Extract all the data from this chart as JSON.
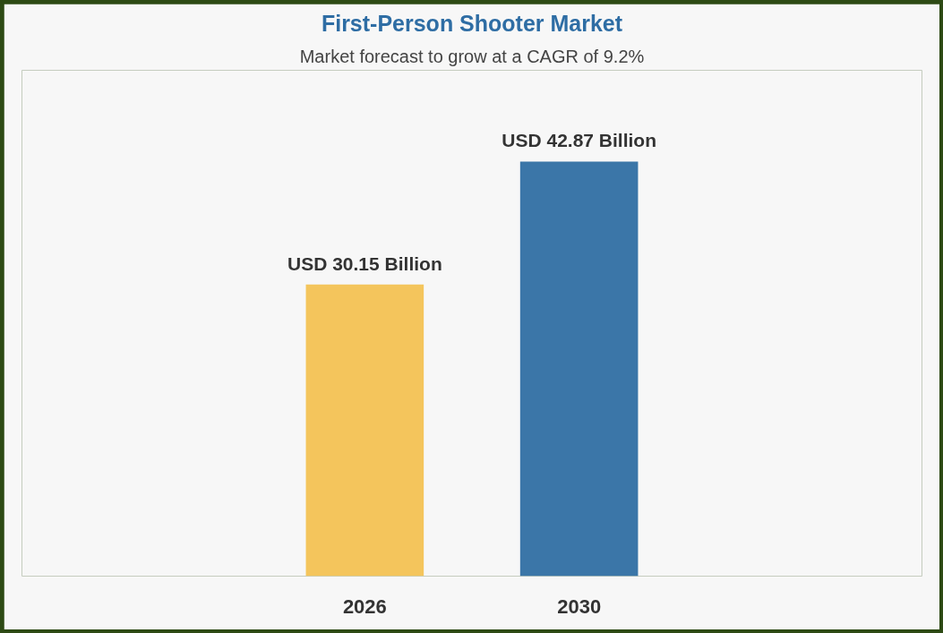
{
  "chart_data": {
    "type": "bar",
    "title": "First-Person Shooter Market",
    "subtitle": "Market forecast to grow at a CAGR of 9.2%",
    "categories": [
      "2026",
      "2030"
    ],
    "values": [
      30.15,
      42.87
    ],
    "colors": [
      "#f4c55c",
      "#3b76a8"
    ],
    "value_labels": [
      "USD 30.15 Billion",
      "USD 42.87 Billion"
    ],
    "grid": false,
    "tick_labels": "x"
  }
}
